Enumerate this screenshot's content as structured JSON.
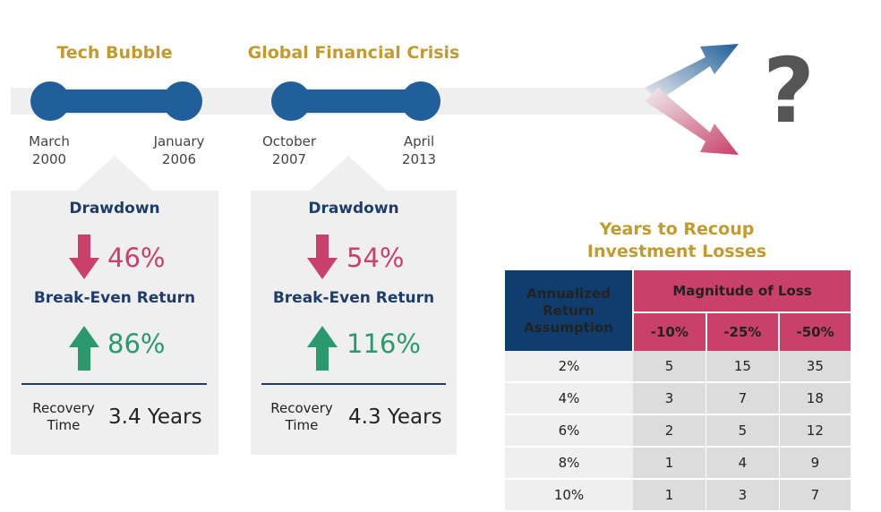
{
  "timeline": {
    "eras": [
      {
        "title": "Tech Bubble",
        "start": [
          "March",
          "2000"
        ],
        "end": [
          "January",
          "2006"
        ]
      },
      {
        "title": "Global Financial Crisis",
        "start": [
          "October",
          "2007"
        ],
        "end": [
          "April",
          "2013"
        ]
      }
    ],
    "future_symbol": "?"
  },
  "cards": [
    {
      "drawdown_label": "Drawdown",
      "drawdown_value": "46%",
      "break_even_label": "Break-Even Return",
      "break_even_value": "86%",
      "recovery_label": [
        "Recovery",
        "Time"
      ],
      "recovery_value": "3.4 Years"
    },
    {
      "drawdown_label": "Drawdown",
      "drawdown_value": "54%",
      "break_even_label": "Break-Even Return",
      "break_even_value": "116%",
      "recovery_label": [
        "Recovery",
        "Time"
      ],
      "recovery_value": "4.3 Years"
    }
  ],
  "recoup_table": {
    "title_line1": "Years to Recoup",
    "title_line2": "Investment Losses",
    "row_header": [
      "Annualized",
      "Return",
      "Assumption"
    ],
    "group_header": "Magnitude of Loss",
    "columns": [
      "-10%",
      "-25%",
      "-50%"
    ],
    "rows": [
      {
        "rate": "2%",
        "values": [
          "5",
          "15",
          "35"
        ]
      },
      {
        "rate": "4%",
        "values": [
          "3",
          "7",
          "18"
        ]
      },
      {
        "rate": "6%",
        "values": [
          "2",
          "5",
          "12"
        ]
      },
      {
        "rate": "8%",
        "values": [
          "1",
          "4",
          "9"
        ]
      },
      {
        "rate": "10%",
        "values": [
          "1",
          "3",
          "7"
        ]
      }
    ]
  },
  "colors": {
    "navy": "#215f9a",
    "gold": "#c29a2e",
    "red": "#c9406a",
    "green": "#2a9a6e",
    "dark_navy": "#0f3d6e"
  }
}
